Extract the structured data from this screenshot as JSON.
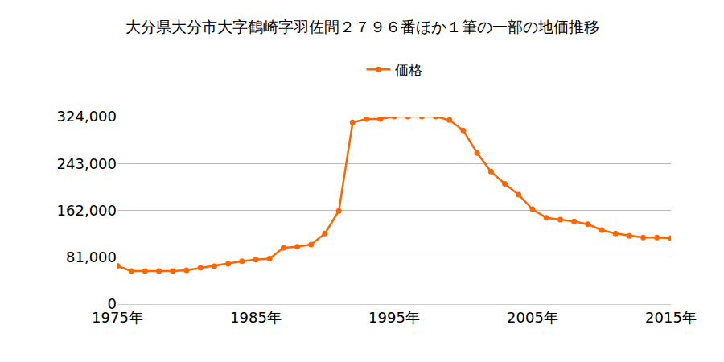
{
  "chart_data": {
    "type": "line",
    "title": "大分県大分市大字鶴崎字羽佐間２７９６番ほか１筆の一部の地価推移",
    "x": [
      1975,
      1976,
      1977,
      1978,
      1979,
      1980,
      1981,
      1982,
      1983,
      1984,
      1985,
      1986,
      1987,
      1988,
      1989,
      1990,
      1991,
      1992,
      1993,
      1994,
      1995,
      1996,
      1997,
      1998,
      1999,
      2000,
      2001,
      2002,
      2003,
      2004,
      2005,
      2006,
      2007,
      2008,
      2009,
      2010,
      2011,
      2012,
      2013,
      2014,
      2015
    ],
    "series": [
      {
        "name": "価格",
        "color": "#ff6600",
        "marker": "circle",
        "values": [
          66000,
          57000,
          57000,
          57000,
          57000,
          58500,
          62500,
          65500,
          69500,
          74000,
          77000,
          78500,
          97500,
          99000,
          103000,
          122000,
          161000,
          314000,
          320000,
          320000,
          324000,
          324000,
          324000,
          324000,
          318000,
          300000,
          261000,
          229000,
          208000,
          189000,
          164000,
          149000,
          146000,
          143000,
          138000,
          128000,
          122000,
          118000,
          115000,
          115000,
          114000
        ]
      }
    ],
    "xlim": [
      1975,
      2015
    ],
    "xticks": [
      {
        "value": 1975,
        "label": "1975年"
      },
      {
        "value": 1985,
        "label": "1985年"
      },
      {
        "value": 1995,
        "label": "1995年"
      },
      {
        "value": 2005,
        "label": "2005年"
      },
      {
        "value": 2015,
        "label": "2015年"
      }
    ],
    "ylim": [
      0,
      324000
    ],
    "yticks": [
      0,
      {
        "value": 81000,
        "label": "81,000"
      },
      {
        "value": 162000,
        "label": "162,000"
      },
      {
        "value": 243000,
        "label": "243,000"
      },
      {
        "value": 324000,
        "label": "324,000"
      }
    ],
    "grid": true,
    "legend": "top"
  }
}
